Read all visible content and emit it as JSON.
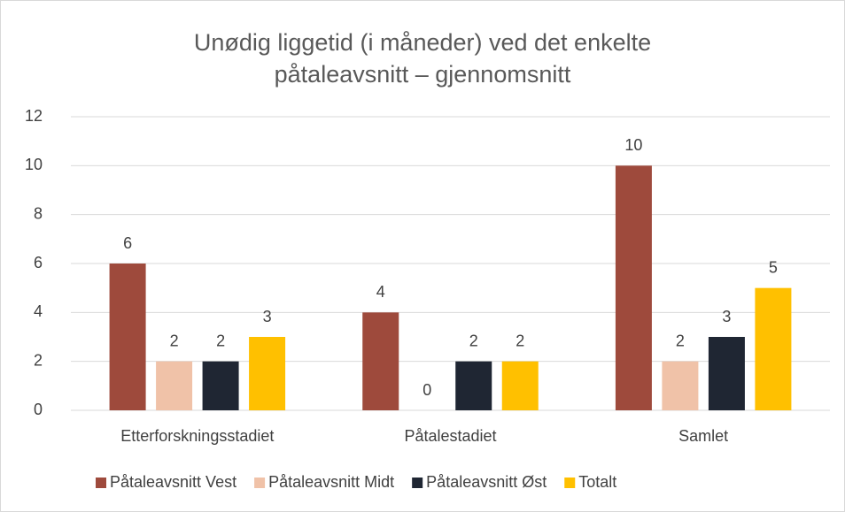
{
  "chart_data": {
    "type": "bar",
    "title": "Unødig liggetid (i måneder) ved det enkelte påtaleavsnitt – gjennomsnitt",
    "categories": [
      "Etterforskningsstadiet",
      "Påtalestadiet",
      "Samlet"
    ],
    "series": [
      {
        "name": "Påtaleavsnitt Vest",
        "color": "#9e4a3c",
        "values": [
          6,
          4,
          10
        ]
      },
      {
        "name": "Påtaleavsnitt Midt",
        "color": "#f0c2a8",
        "values": [
          2,
          0,
          2
        ]
      },
      {
        "name": "Påtaleavsnitt Øst",
        "color": "#1f2633",
        "values": [
          2,
          2,
          3
        ]
      },
      {
        "name": "Totalt",
        "color": "#ffc000",
        "values": [
          3,
          2,
          5
        ]
      }
    ],
    "ylim": [
      0,
      12
    ],
    "yticks": [
      0,
      2,
      4,
      6,
      8,
      10,
      12
    ],
    "grid": true,
    "legend": "bottom"
  }
}
